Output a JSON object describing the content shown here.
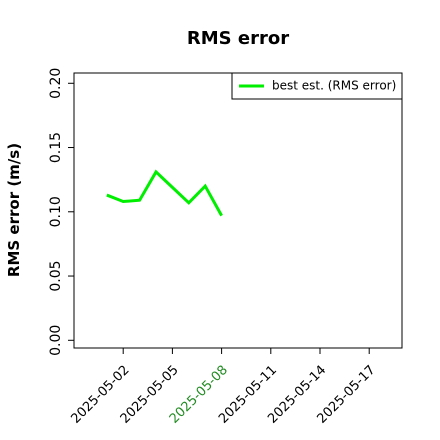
{
  "chart_data": {
    "type": "line",
    "title": "RMS error",
    "ylabel": "RMS error (m/s)",
    "x": [
      "2025-05-01",
      "2025-05-02",
      "2025-05-03",
      "2025-05-04",
      "2025-05-05",
      "2025-05-06",
      "2025-05-07",
      "2025-05-08"
    ],
    "series": [
      {
        "name": "best est. (RMS error)",
        "color": "#00ee00",
        "values": [
          0.113,
          0.108,
          0.109,
          0.131,
          0.119,
          0.107,
          0.12,
          0.097
        ]
      }
    ],
    "xlim": [
      "2025-04-29",
      "2025-05-19"
    ],
    "xticks": [
      "2025-05-02",
      "2025-05-05",
      "2025-05-08",
      "2025-05-11",
      "2025-05-14",
      "2025-05-17"
    ],
    "xtick_label_colors": [
      "#000000",
      "#000000",
      "#228b22",
      "#000000",
      "#000000",
      "#000000"
    ],
    "ylim": [
      -0.006,
      0.208
    ],
    "yticks": [
      {
        "value": 0,
        "label": "0.00"
      },
      {
        "value": 0.05,
        "label": "0.05"
      },
      {
        "value": 0.1,
        "label": "0.10"
      },
      {
        "value": 0.15,
        "label": "0.15"
      },
      {
        "value": 0.2,
        "label": "0.20"
      }
    ],
    "legend": "upper right",
    "grid": false
  }
}
